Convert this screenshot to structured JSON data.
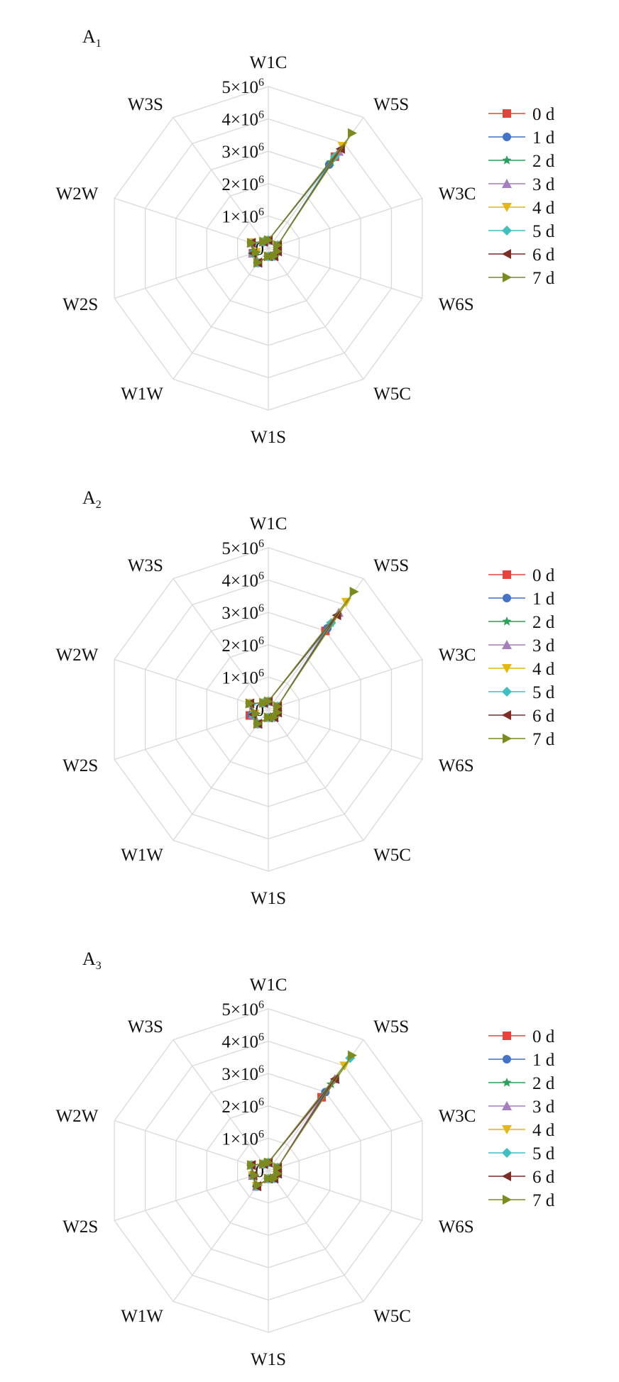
{
  "chart_data": [
    {
      "type": "radar",
      "panel_label": "A",
      "panel_sub": "1",
      "axes": [
        "W1C",
        "W5S",
        "W3C",
        "W6S",
        "W5C",
        "W1S",
        "W1W",
        "W2S",
        "W2W",
        "W3S"
      ],
      "ticks": [
        "0",
        "1×10⁶",
        "2×10⁶",
        "3×10⁶",
        "4×10⁶",
        "5×10⁶"
      ],
      "rmax": 5000000,
      "grid": true,
      "legend_position": "right",
      "series": [
        {
          "name": "0 d",
          "values": [
            250000,
            3500000,
            300000,
            300000,
            300000,
            250000,
            550000,
            500000,
            550000,
            250000
          ]
        },
        {
          "name": "1 d",
          "values": [
            250000,
            3200000,
            300000,
            300000,
            300000,
            250000,
            550000,
            500000,
            550000,
            250000
          ]
        },
        {
          "name": "2 d",
          "values": [
            250000,
            3300000,
            300000,
            300000,
            300000,
            250000,
            550000,
            400000,
            550000,
            250000
          ]
        },
        {
          "name": "3 d",
          "values": [
            250000,
            3700000,
            300000,
            300000,
            300000,
            250000,
            550000,
            500000,
            550000,
            250000
          ]
        },
        {
          "name": "4 d",
          "values": [
            250000,
            3900000,
            300000,
            300000,
            300000,
            250000,
            550000,
            400000,
            550000,
            250000
          ]
        },
        {
          "name": "5 d",
          "values": [
            250000,
            3500000,
            300000,
            300000,
            300000,
            250000,
            550000,
            500000,
            500000,
            250000
          ]
        },
        {
          "name": "6 d",
          "values": [
            250000,
            3800000,
            300000,
            300000,
            300000,
            250000,
            550000,
            500000,
            550000,
            250000
          ]
        },
        {
          "name": "7 d",
          "values": [
            250000,
            4400000,
            300000,
            300000,
            300000,
            250000,
            550000,
            400000,
            550000,
            250000
          ]
        }
      ]
    },
    {
      "type": "radar",
      "panel_label": "A",
      "panel_sub": "2",
      "axes": [
        "W1C",
        "W5S",
        "W3C",
        "W6S",
        "W5C",
        "W1S",
        "W1W",
        "W2S",
        "W2W",
        "W3S"
      ],
      "ticks": [
        "0",
        "1×10⁶",
        "2×10⁶",
        "3×10⁶",
        "4×10⁶",
        "5×10⁶"
      ],
      "rmax": 5000000,
      "grid": true,
      "legend_position": "right",
      "series": [
        {
          "name": "0 d",
          "values": [
            250000,
            3000000,
            300000,
            300000,
            300000,
            250000,
            550000,
            600000,
            600000,
            250000
          ]
        },
        {
          "name": "1 d",
          "values": [
            250000,
            3100000,
            300000,
            300000,
            300000,
            250000,
            550000,
            550000,
            600000,
            250000
          ]
        },
        {
          "name": "2 d",
          "values": [
            250000,
            3300000,
            300000,
            300000,
            300000,
            250000,
            550000,
            500000,
            600000,
            250000
          ]
        },
        {
          "name": "3 d",
          "values": [
            250000,
            3700000,
            300000,
            300000,
            300000,
            250000,
            550000,
            500000,
            600000,
            250000
          ]
        },
        {
          "name": "4 d",
          "values": [
            250000,
            4100000,
            300000,
            300000,
            300000,
            250000,
            550000,
            450000,
            600000,
            250000
          ]
        },
        {
          "name": "5 d",
          "values": [
            250000,
            3300000,
            300000,
            300000,
            300000,
            250000,
            550000,
            500000,
            550000,
            250000
          ]
        },
        {
          "name": "6 d",
          "values": [
            250000,
            3600000,
            300000,
            300000,
            300000,
            250000,
            550000,
            500000,
            600000,
            250000
          ]
        },
        {
          "name": "7 d",
          "values": [
            250000,
            4500000,
            300000,
            300000,
            300000,
            250000,
            550000,
            400000,
            600000,
            250000
          ]
        }
      ]
    },
    {
      "type": "radar",
      "panel_label": "A",
      "panel_sub": "3",
      "axes": [
        "W1C",
        "W5S",
        "W3C",
        "W6S",
        "W5C",
        "W1S",
        "W1W",
        "W2S",
        "W2W",
        "W3S"
      ],
      "ticks": [
        "0",
        "1×10⁶",
        "2×10⁶",
        "3×10⁶",
        "4×10⁶",
        "5×10⁶"
      ],
      "rmax": 5000000,
      "grid": true,
      "legend_position": "right",
      "series": [
        {
          "name": "0 d",
          "values": [
            250000,
            2800000,
            300000,
            300000,
            300000,
            250000,
            600000,
            500000,
            550000,
            250000
          ]
        },
        {
          "name": "1 d",
          "values": [
            250000,
            3000000,
            300000,
            300000,
            300000,
            250000,
            600000,
            500000,
            550000,
            250000
          ]
        },
        {
          "name": "2 d",
          "values": [
            250000,
            3300000,
            300000,
            300000,
            300000,
            250000,
            600000,
            500000,
            550000,
            250000
          ]
        },
        {
          "name": "3 d",
          "values": [
            250000,
            3500000,
            300000,
            300000,
            300000,
            250000,
            600000,
            500000,
            550000,
            250000
          ]
        },
        {
          "name": "4 d",
          "values": [
            250000,
            4000000,
            300000,
            300000,
            300000,
            250000,
            600000,
            500000,
            550000,
            250000
          ]
        },
        {
          "name": "5 d",
          "values": [
            250000,
            4300000,
            300000,
            300000,
            300000,
            250000,
            600000,
            500000,
            550000,
            250000
          ]
        },
        {
          "name": "6 d",
          "values": [
            250000,
            3500000,
            300000,
            300000,
            300000,
            250000,
            600000,
            500000,
            550000,
            250000
          ]
        },
        {
          "name": "7 d",
          "values": [
            250000,
            4400000,
            300000,
            300000,
            300000,
            250000,
            550000,
            450000,
            550000,
            250000
          ]
        }
      ]
    }
  ],
  "series_colors": [
    "#e8423c",
    "#4472c4",
    "#2e9e5b",
    "#a47ebd",
    "#e5b713",
    "#3ec0c0",
    "#7b2d26",
    "#7d8b1e"
  ],
  "series_markers": [
    "square",
    "circle",
    "star",
    "triangle-up",
    "triangle-down",
    "diamond",
    "triangle-left",
    "triangle-right"
  ],
  "grid_color": "#d9d9d9"
}
